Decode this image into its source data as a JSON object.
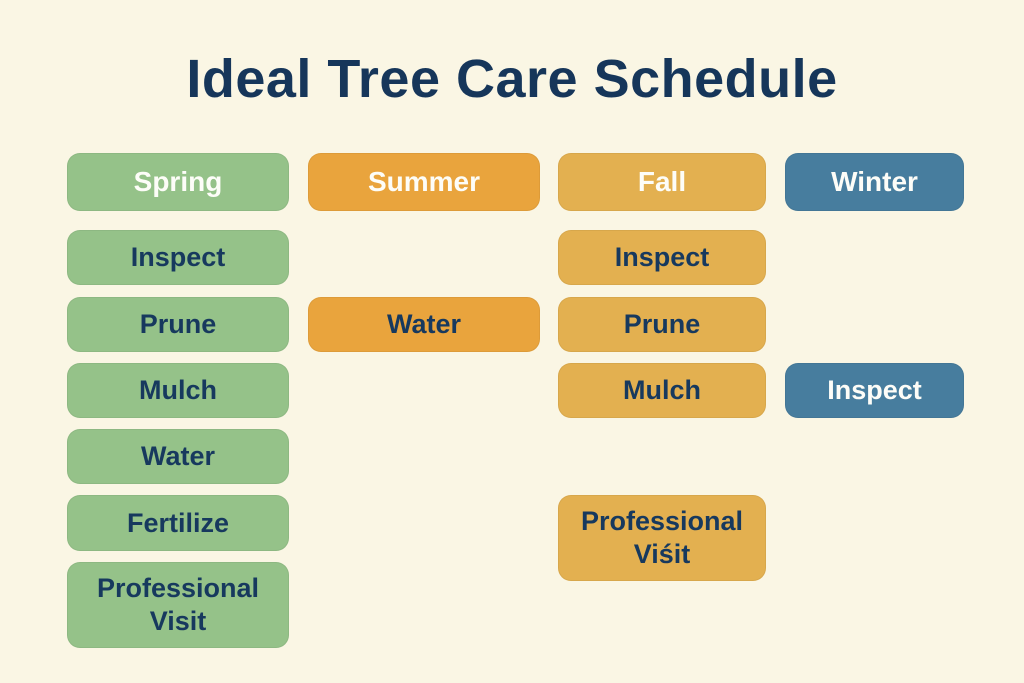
{
  "title": "Ideal Tree Care Schedule",
  "colors": {
    "background": "#FAF6E4",
    "title_text": "#16365A",
    "task_text": "#17395E",
    "header_text": "#FDFDF8",
    "spring": "#95C289",
    "summer": "#E9A43D",
    "fall": "#E3B050",
    "winter": "#477D9E"
  },
  "columns": [
    {
      "season": "Spring",
      "tasks": [
        "Inspect",
        "Prune",
        "Mulch",
        "Water",
        "Fertilize",
        "Professional Visit"
      ]
    },
    {
      "season": "Summer",
      "tasks": [
        "Water"
      ]
    },
    {
      "season": "Fall",
      "tasks": [
        "Inspect",
        "Prune",
        "Mulch",
        "Professional Viśit"
      ]
    },
    {
      "season": "Winter",
      "tasks": [
        "Inspect"
      ]
    }
  ]
}
